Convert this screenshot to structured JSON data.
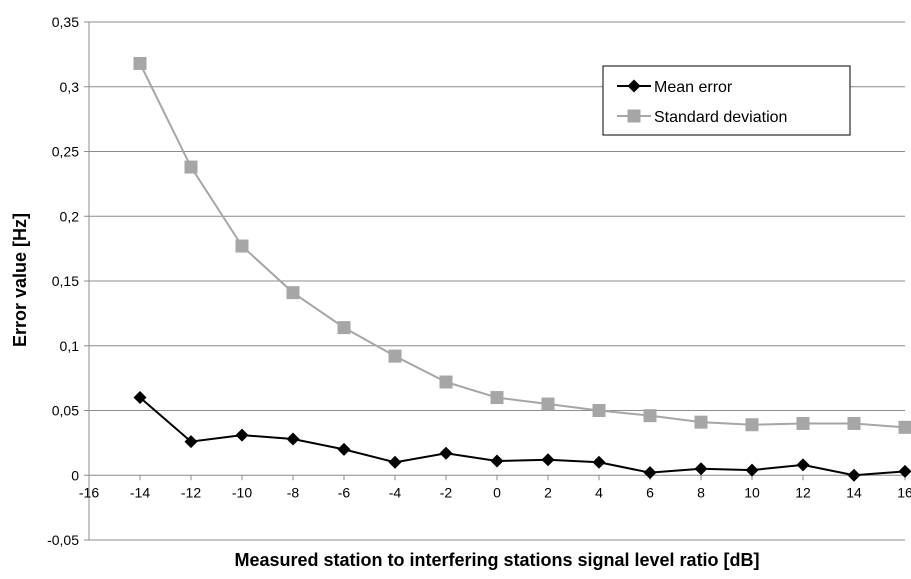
{
  "chart_data": {
    "type": "line",
    "title": "",
    "xlabel": "Measured station to interfering stations signal level ratio [dB]",
    "ylabel": "Error value [Hz]",
    "xlim": [
      -16,
      16
    ],
    "ylim": [
      -0.05,
      0.35
    ],
    "x_ticks": [
      -16,
      -14,
      -12,
      -10,
      -8,
      -6,
      -4,
      -2,
      0,
      2,
      4,
      6,
      8,
      10,
      12,
      14,
      16
    ],
    "x_tick_labels": [
      "-16",
      "-14",
      "-12",
      "-10",
      "-8",
      "-6",
      "-4",
      "-2",
      "0",
      "2",
      "4",
      "6",
      "8",
      "10",
      "12",
      "14",
      "16"
    ],
    "y_ticks": [
      -0.05,
      0,
      0.05,
      0.1,
      0.15,
      0.2,
      0.25,
      0.3,
      0.35
    ],
    "y_tick_labels": [
      "-0,05",
      "0",
      "0,05",
      "0,1",
      "0,15",
      "0,2",
      "0,25",
      "0,3",
      "0,35"
    ],
    "grid": "horizontal",
    "legend_position": "top-right",
    "x": [
      -14,
      -12,
      -10,
      -8,
      -6,
      -4,
      -2,
      0,
      2,
      4,
      6,
      8,
      10,
      12,
      14,
      16
    ],
    "series": [
      {
        "name": "Mean error",
        "color": "#000000",
        "marker": "diamond",
        "values": [
          0.06,
          0.026,
          0.031,
          0.028,
          0.02,
          0.01,
          0.017,
          0.011,
          0.012,
          0.01,
          0.002,
          0.005,
          0.004,
          0.008,
          0.0,
          0.003
        ]
      },
      {
        "name": "Standard deviation",
        "color": "#a6a6a6",
        "marker": "square",
        "values": [
          0.318,
          0.238,
          0.177,
          0.141,
          0.114,
          0.092,
          0.072,
          0.06,
          0.055,
          0.05,
          0.046,
          0.041,
          0.039,
          0.04,
          0.04,
          0.037
        ]
      }
    ]
  }
}
